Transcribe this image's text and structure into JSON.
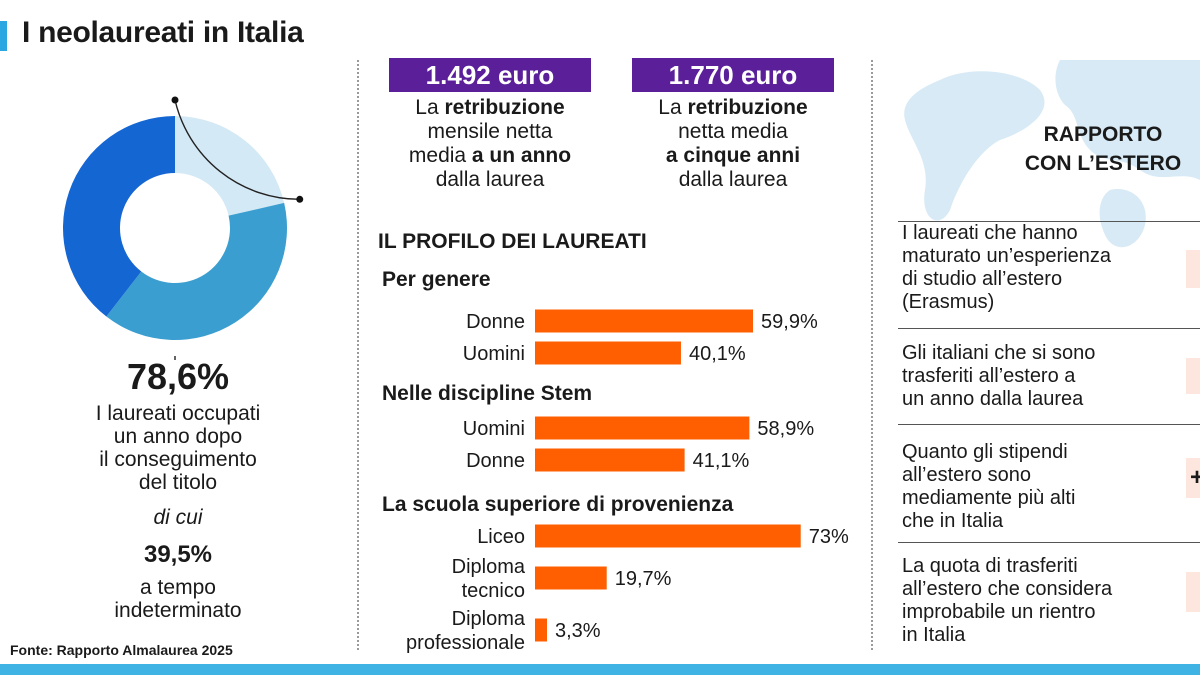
{
  "title": "I neolaureati in Italia",
  "source": "Fonte: Rapporto Almalaurea 2025",
  "colors": {
    "accent": "#2aa6e0",
    "donut_dark": "#1466d2",
    "donut_mid": "#3a9ed0",
    "donut_light": "#d4e9f6",
    "salary_box": "#5a1f99",
    "bar": "#ff5f00",
    "map": "#d7eaf5",
    "bottom_bar": "#3fb4e4"
  },
  "left": {
    "employed_pct": "78,6%",
    "employed_caption": [
      "I laureati occupati",
      "un anno dopo",
      "il conseguimento",
      "del titolo"
    ],
    "di_cui": "di cui",
    "permanent_pct": "39,5%",
    "permanent_caption": [
      "a tempo",
      "indeterminato"
    ]
  },
  "salaries": [
    {
      "value": "1.492 euro",
      "lines": [
        "La <b>retribuzione</b>",
        "mensile netta",
        "media <b>a un anno</b>",
        "dalla laurea"
      ]
    },
    {
      "value": "1.770 euro",
      "lines": [
        "La <b>retribuzione</b>",
        "netta media",
        "<b>a cinque anni</b>",
        "dalla laurea"
      ]
    }
  ],
  "profile_title": "IL PROFILO DEI LAUREATI",
  "chart_data": {
    "type": "bar",
    "orientation": "horizontal",
    "groups": [
      {
        "title": "Per genere",
        "categories": [
          "Donne",
          "Uomini"
        ],
        "values": [
          59.9,
          40.1
        ],
        "labels": [
          "59,9%",
          "40,1%"
        ]
      },
      {
        "title": "Nelle discipline Stem",
        "categories": [
          "Uomini",
          "Donne"
        ],
        "values": [
          58.9,
          41.1
        ],
        "labels": [
          "58,9%",
          "41,1%"
        ]
      },
      {
        "title": "La scuola superiore di provenienza",
        "categories": [
          "Liceo",
          "Diploma\ntecnico",
          "Diploma\nprofessionale"
        ],
        "values": [
          73,
          19.7,
          3.3
        ],
        "labels": [
          "73%",
          "19,7%",
          "3,3%"
        ]
      }
    ],
    "donut": {
      "values": [
        78.6,
        39.5
      ],
      "labels": [
        "78,6%",
        "39,5%"
      ]
    }
  },
  "right": {
    "heading": [
      "RAPPORTO",
      "CON L’ESTERO"
    ],
    "items": [
      [
        "I laureati che hanno",
        "maturato un’esperienza",
        "di studio all’estero",
        "(Erasmus)"
      ],
      [
        "Gli italiani che si sono",
        "trasferiti all’estero a",
        "un anno dalla laurea"
      ],
      [
        "Quanto gli stipendi",
        "all’estero sono",
        "mediamente più alti",
        "che in Italia"
      ],
      [
        "La quota di trasferiti",
        "all’estero che considera",
        "improbabile un rientro",
        "in Italia"
      ]
    ],
    "plus_sign": "+"
  }
}
